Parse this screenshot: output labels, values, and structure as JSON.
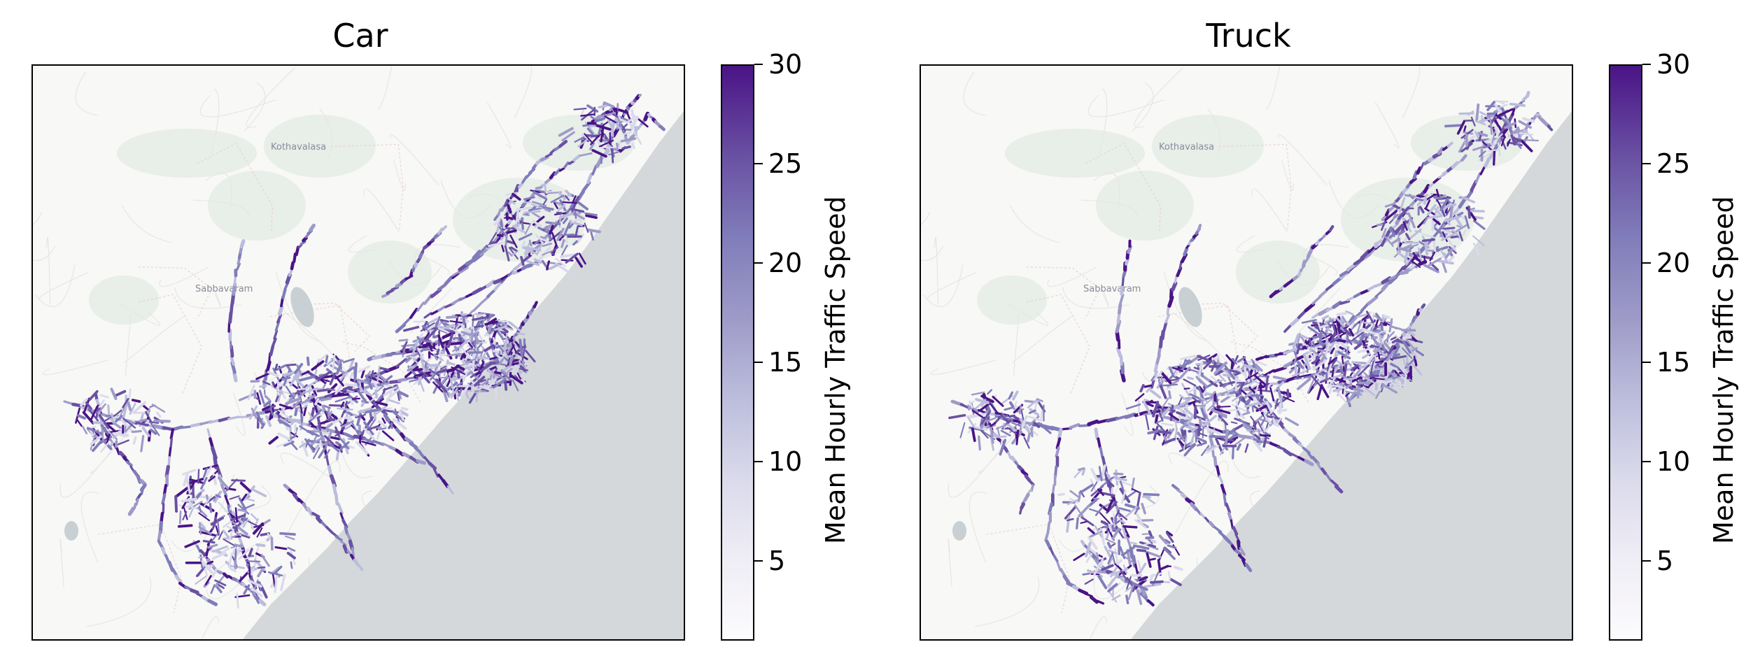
{
  "panels": [
    {
      "id": "car",
      "title": "Car"
    },
    {
      "id": "truck",
      "title": "Truck"
    }
  ],
  "colorbar": {
    "label": "Mean Hourly Traffic Speed",
    "ticks": [
      "5",
      "10",
      "15",
      "20",
      "25",
      "30"
    ],
    "tick_values": [
      5,
      10,
      15,
      20,
      25,
      30
    ],
    "vmin": 1,
    "vmax": 30,
    "colormap": "Purples",
    "colors": [
      "#fcfbfd",
      "#efedf5",
      "#dadaeb",
      "#bcbddc",
      "#9e9ac8",
      "#807dba",
      "#6a51a3",
      "#4a1486"
    ]
  },
  "basemap": {
    "places": [
      "Kothavalasa",
      "Sabbavaram"
    ],
    "sea_color": "#d4d8da",
    "land_color": "#f8f8f6",
    "forest_color": "#e8eee8"
  }
}
